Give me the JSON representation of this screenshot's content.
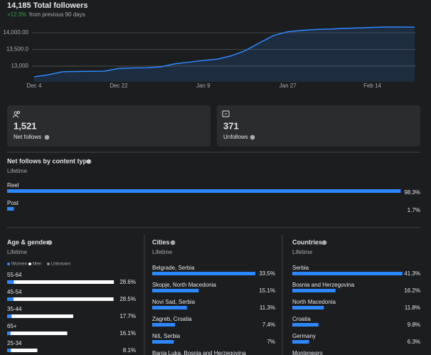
{
  "header": {
    "title": "14,185 Total followers",
    "change": "+12.3%",
    "change_note": "from previous 90 days"
  },
  "chart_data": {
    "type": "line",
    "categories": [
      "Dec 4",
      null,
      null,
      null,
      null,
      null,
      "Dec 22",
      null,
      null,
      null,
      null,
      null,
      "Jan 9",
      null,
      null,
      null,
      null,
      null,
      "Jan 27",
      null,
      null,
      null,
      null,
      null,
      "Feb 14",
      null,
      null,
      null
    ],
    "series": [
      {
        "name": "Total followers",
        "color": "#2d88ff",
        "values": [
          12680,
          12740,
          12830,
          12840,
          12845,
          12850,
          12930,
          12945,
          12950,
          12980,
          13070,
          13120,
          13170,
          13210,
          13310,
          13470,
          13700,
          13920,
          14030,
          14070,
          14100,
          14110,
          14130,
          14145,
          14160,
          14170,
          14170,
          14165
        ]
      }
    ],
    "ylim": [
      12530,
      14235
    ],
    "yticks": [
      {
        "value": 13000,
        "label": "13,000"
      },
      {
        "value": 13500,
        "label": "13,500.0"
      },
      {
        "value": 14000,
        "label": "14,000.00"
      }
    ],
    "grid": true
  },
  "cards": [
    {
      "value": "1,521",
      "label": "Net follows"
    },
    {
      "value": "371",
      "label": "Unfollows"
    }
  ],
  "content_type": {
    "type": "bar",
    "title": "Net follows by content type",
    "subtitle": "Lifetime",
    "categories": [
      "Reel",
      "Post"
    ],
    "values": [
      98.3,
      1.7
    ],
    "value_labels": [
      "98.3%",
      "1.7%"
    ],
    "color": "#2d88ff"
  },
  "age_gender": {
    "type": "stacked-bar",
    "title": "Age & gender",
    "subtitle": "Lifetime",
    "categories": [
      "55-64",
      "45-54",
      "35-44",
      "65+",
      "25-34"
    ],
    "series": [
      {
        "name": "Women",
        "color": "#2d88ff",
        "values": [
          1.8,
          1.7,
          1.2,
          0.9,
          1.0
        ]
      },
      {
        "name": "Men",
        "color": "#ffffff",
        "values": [
          26.8,
          26.8,
          16.5,
          15.2,
          7.1
        ]
      },
      {
        "name": "Unknown",
        "color": "#8a8d91",
        "values": [
          0,
          0,
          0,
          0,
          0
        ]
      }
    ],
    "totals": [
      28.6,
      28.5,
      17.7,
      16.1,
      8.1
    ],
    "total_labels": [
      "28.6%",
      "28.5%",
      "17.7%",
      "16.1%",
      "8.1%"
    ]
  },
  "cities": {
    "type": "bar",
    "title": "Cities",
    "subtitle": "Lifetime",
    "categories": [
      "Belgrade, Serbia",
      "Skopje, North Macedonia",
      "Novi Sad, Serbia",
      "Zagreb, Croatia",
      "Niš, Serbia",
      "Banja Luka, Bosnia and Herzegovina"
    ],
    "values": [
      33.5,
      15.1,
      11.3,
      7.4,
      7,
      null
    ],
    "value_labels": [
      "33.5%",
      "15.1%",
      "11.3%",
      "7.4%",
      "7%",
      null
    ],
    "color": "#2d88ff"
  },
  "countries": {
    "type": "bar",
    "title": "Countries",
    "subtitle": "Lifetime",
    "categories": [
      "Serbia",
      "Bosnia and Herzegovina",
      "North Macedonia",
      "Croatia",
      "Germany",
      "Montenegro"
    ],
    "values": [
      41.3,
      16.2,
      11.8,
      9.8,
      6.3,
      null
    ],
    "value_labels": [
      "41.3%",
      "16.2%",
      "11.8%",
      "9.8%",
      "6.3%",
      null
    ],
    "color": "#2d88ff"
  }
}
